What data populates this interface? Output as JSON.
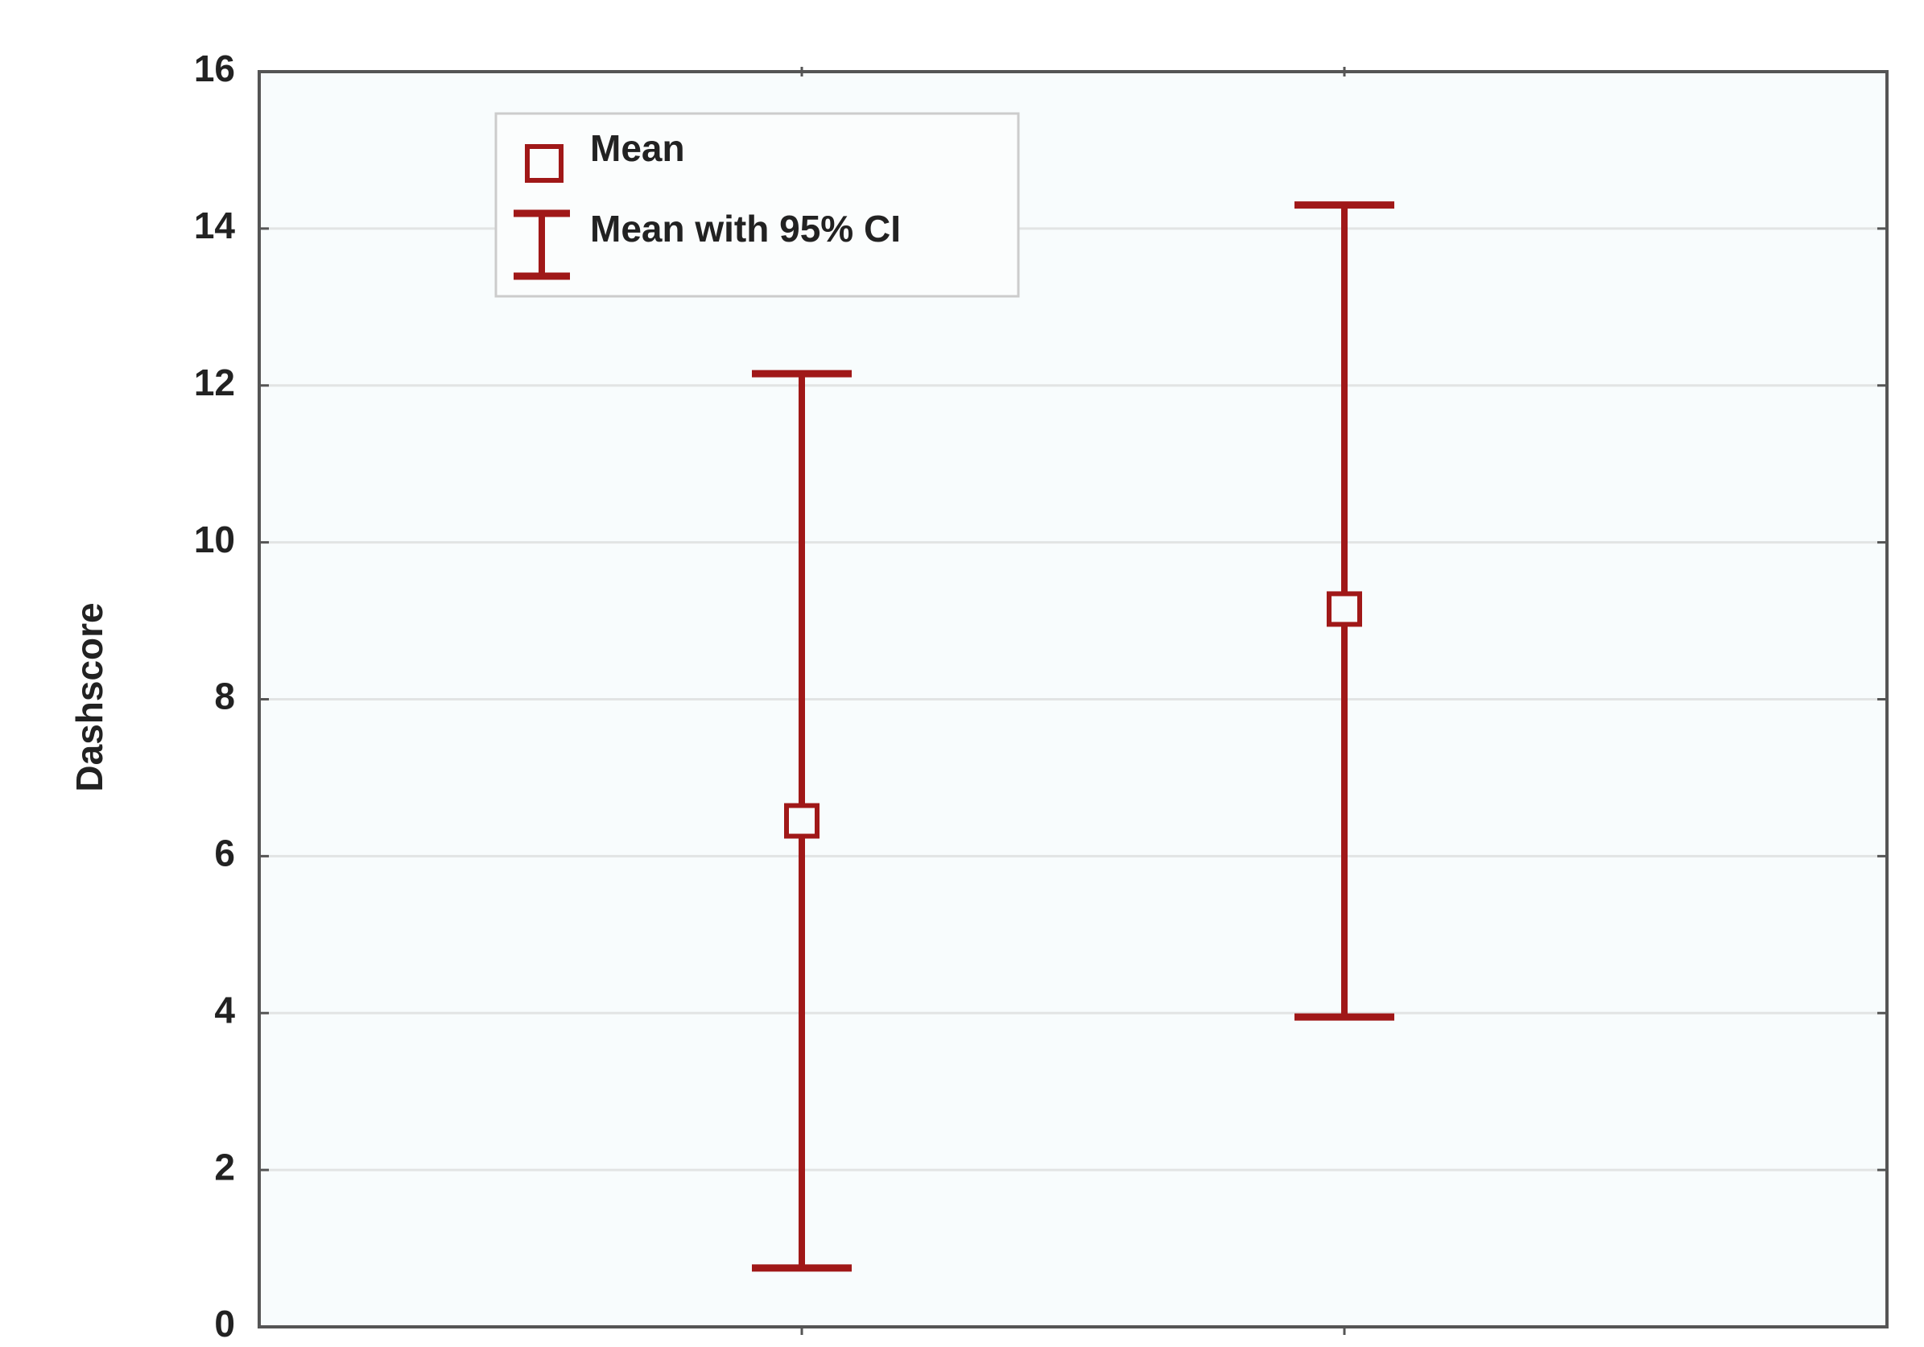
{
  "chart_data": {
    "type": "errorbar",
    "y_label": "Dashscore",
    "categories": [
      null,
      null
    ],
    "values": [
      6.45,
      9.15
    ],
    "lower": [
      0.75,
      3.95
    ],
    "upper": [
      12.15,
      14.3
    ],
    "legend": [
      "Mean",
      "Mean with 95% CI"
    ],
    "color": "#a01818",
    "ylim": [
      0,
      16
    ],
    "yticks": [
      0,
      2,
      4,
      6,
      8,
      10,
      12,
      14,
      16
    ],
    "grid": true
  }
}
